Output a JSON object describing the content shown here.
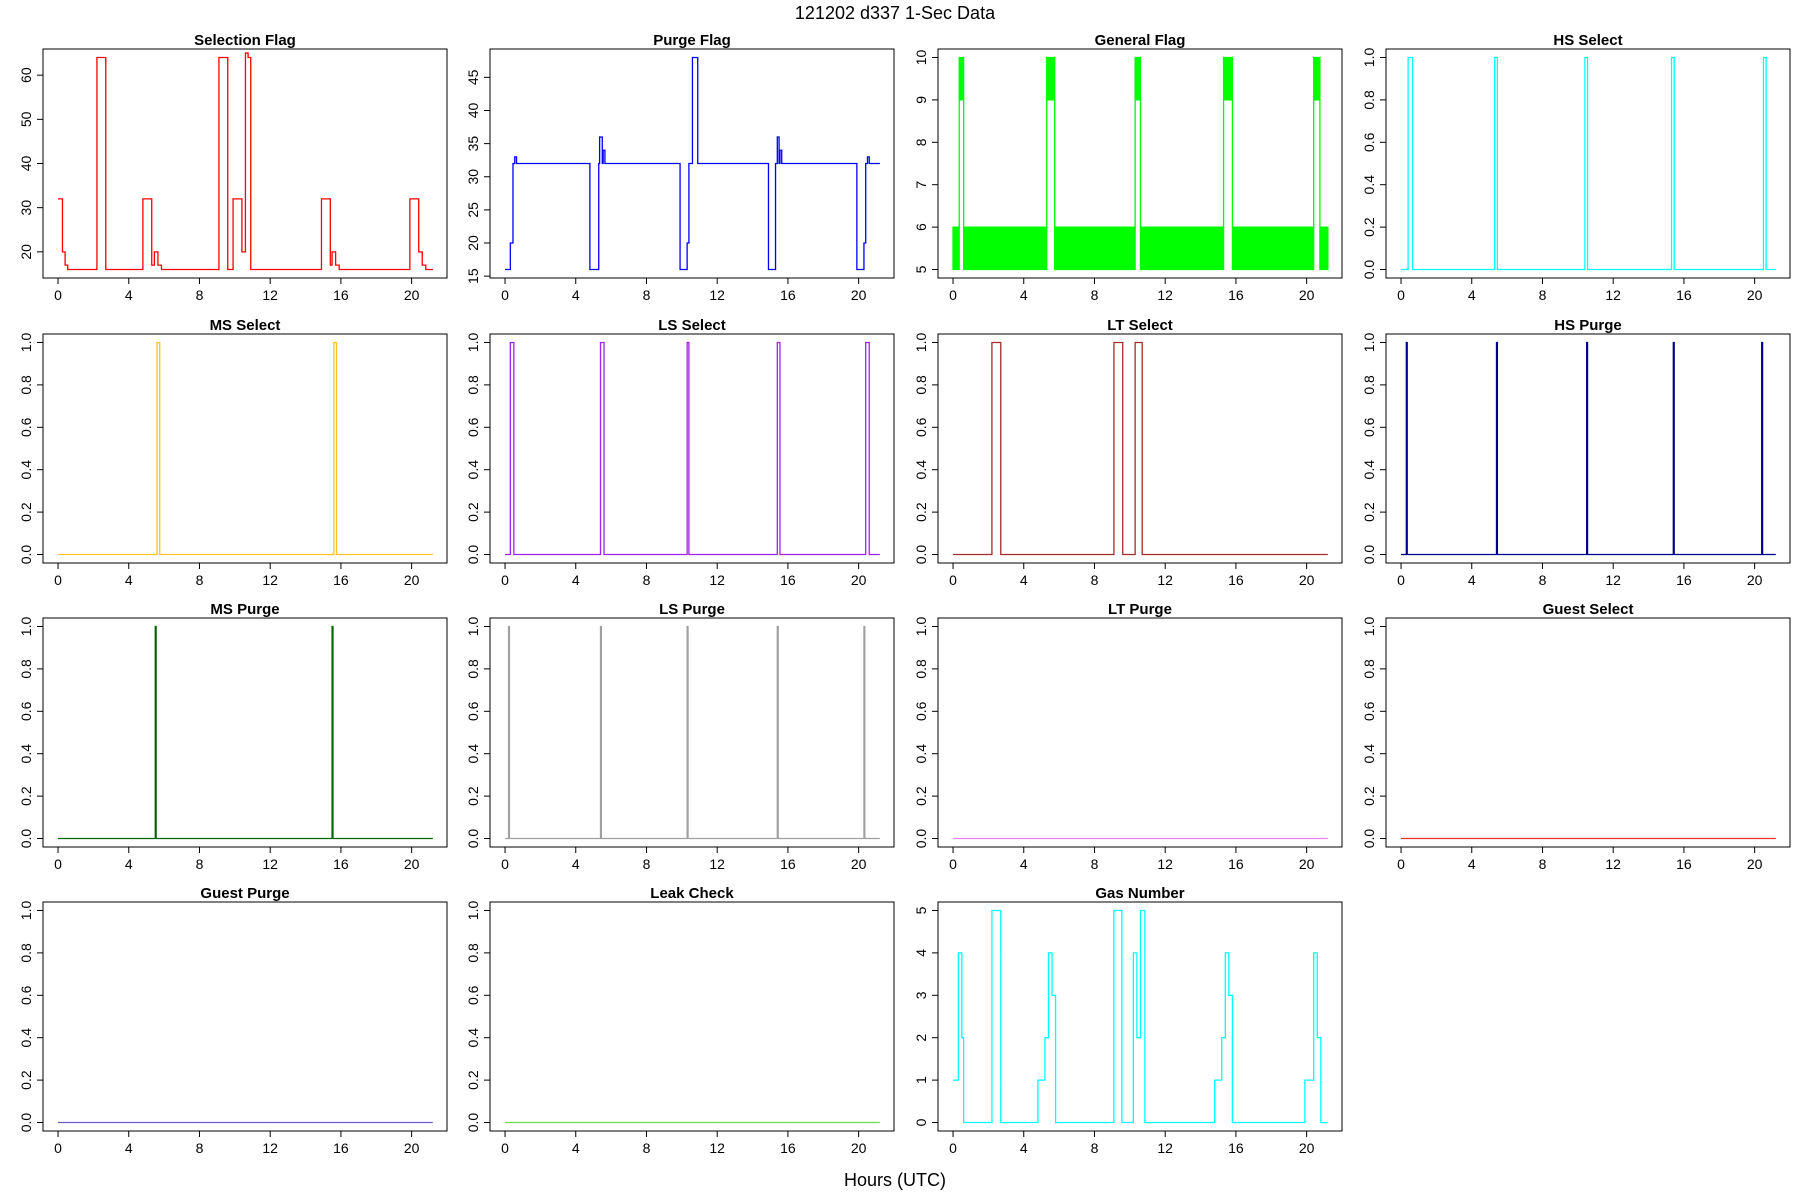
{
  "title": "121202   d337   1-Sec Data",
  "xlabel": "Hours (UTC)",
  "chart_data": [
    {
      "type": "line",
      "title": "Selection Flag",
      "color": "#ff0000",
      "x": [
        0,
        0.25,
        0.4,
        0.55,
        2.2,
        2.7,
        4.8,
        5.3,
        5.45,
        5.65,
        5.85,
        9.1,
        9.6,
        9.9,
        10.4,
        10.6,
        10.75,
        10.9,
        14.9,
        15.4,
        15.5,
        15.7,
        15.9,
        19.9,
        20.4,
        20.6,
        20.8,
        21.2
      ],
      "values": [
        32,
        20,
        17,
        16,
        64,
        16,
        32,
        17,
        20,
        17,
        16,
        64,
        16,
        32,
        20,
        65,
        64,
        16,
        32,
        17,
        20,
        17,
        16,
        32,
        20,
        17,
        16,
        16
      ],
      "xlim": [
        -0.85,
        22.0
      ],
      "ylim": [
        14.08,
        65.92
      ],
      "xticks": [
        0,
        4,
        8,
        12,
        16,
        20
      ],
      "yticks": [
        20,
        30,
        40,
        50,
        60
      ]
    },
    {
      "type": "line",
      "title": "Purge Flag",
      "color": "#0000ff",
      "x": [
        0,
        0.3,
        0.45,
        0.55,
        0.65,
        4.8,
        5.3,
        5.35,
        5.5,
        5.55,
        5.65,
        9.9,
        10.3,
        10.4,
        10.6,
        10.9,
        14.9,
        15.3,
        15.4,
        15.5,
        15.55,
        15.65,
        19.9,
        20.3,
        20.4,
        20.5,
        20.6,
        21.2
      ],
      "values": [
        16,
        20,
        32,
        33,
        32,
        16,
        32,
        36,
        32,
        34,
        32,
        16,
        20,
        32,
        48,
        32,
        16,
        32,
        36,
        32,
        34,
        32,
        16,
        20,
        32,
        33,
        32,
        32
      ],
      "xlim": [
        -0.85,
        22.0
      ],
      "ylim": [
        14.72,
        49.28
      ],
      "xticks": [
        0,
        4,
        8,
        12,
        16,
        20
      ],
      "yticks": [
        15,
        20,
        25,
        30,
        35,
        40,
        45
      ]
    },
    {
      "type": "band",
      "title": "General Flag",
      "color": "#00ff00",
      "x": [
        0,
        0.35,
        0.6,
        5.3,
        5.75,
        10.3,
        10.6,
        15.3,
        15.8,
        20.4,
        20.75,
        21.2
      ],
      "values": [
        6,
        10,
        6,
        10,
        6,
        10,
        6,
        10,
        6,
        10,
        6,
        6
      ],
      "low": [
        5,
        9,
        5,
        9,
        5,
        9,
        5,
        9,
        5,
        9,
        5,
        5
      ],
      "xlim": [
        -0.85,
        22.0
      ],
      "ylim": [
        4.8,
        10.2
      ],
      "xticks": [
        0,
        4,
        8,
        12,
        16,
        20
      ],
      "yticks": [
        5,
        6,
        7,
        8,
        9,
        10
      ]
    },
    {
      "type": "line",
      "title": "HS Select",
      "color": "#00ffff",
      "x": [
        0,
        0.4,
        0.65,
        5.3,
        5.45,
        10.4,
        10.55,
        15.3,
        15.45,
        20.5,
        20.65,
        21.2
      ],
      "values": [
        0,
        1,
        0,
        1,
        0,
        1,
        0,
        1,
        0,
        1,
        0,
        0
      ],
      "xlim": [
        -0.85,
        22.0
      ],
      "ylim": [
        -0.04,
        1.04
      ],
      "xticks": [
        0,
        4,
        8,
        12,
        16,
        20
      ],
      "yticks": [
        {
          "value": 0,
          "label": "0.0"
        },
        {
          "value": 0.2,
          "label": "0.2"
        },
        {
          "value": 0.4,
          "label": "0.4"
        },
        {
          "value": 0.6,
          "label": "0.6"
        },
        {
          "value": 0.8,
          "label": "0.8"
        },
        {
          "value": 1,
          "label": "1.0"
        }
      ]
    },
    {
      "type": "line",
      "title": "MS Select",
      "color": "#ffc125",
      "x": [
        0,
        5.6,
        5.75,
        15.6,
        15.75,
        21.2
      ],
      "values": [
        0,
        1,
        0,
        1,
        0,
        0
      ],
      "xlim": [
        -0.85,
        22.0
      ],
      "ylim": [
        -0.04,
        1.04
      ],
      "xticks": [
        0,
        4,
        8,
        12,
        16,
        20
      ],
      "yticks": [
        {
          "value": 0,
          "label": "0.0"
        },
        {
          "value": 0.2,
          "label": "0.2"
        },
        {
          "value": 0.4,
          "label": "0.4"
        },
        {
          "value": 0.6,
          "label": "0.6"
        },
        {
          "value": 0.8,
          "label": "0.8"
        },
        {
          "value": 1,
          "label": "1.0"
        }
      ]
    },
    {
      "type": "line",
      "title": "LS Select",
      "color": "#a020f0",
      "x": [
        0,
        0.3,
        0.5,
        5.4,
        5.6,
        10.3,
        10.4,
        15.4,
        15.55,
        20.4,
        20.6,
        21.2
      ],
      "values": [
        0,
        1,
        0,
        1,
        0,
        1,
        0,
        1,
        0,
        1,
        0,
        0
      ],
      "xlim": [
        -0.85,
        22.0
      ],
      "ylim": [
        -0.04,
        1.04
      ],
      "xticks": [
        0,
        4,
        8,
        12,
        16,
        20
      ],
      "yticks": [
        {
          "value": 0,
          "label": "0.0"
        },
        {
          "value": 0.2,
          "label": "0.2"
        },
        {
          "value": 0.4,
          "label": "0.4"
        },
        {
          "value": 0.6,
          "label": "0.6"
        },
        {
          "value": 0.8,
          "label": "0.8"
        },
        {
          "value": 1,
          "label": "1.0"
        }
      ]
    },
    {
      "type": "line",
      "title": "LT Select",
      "color": "#a52a2a",
      "x": [
        0,
        2.2,
        2.7,
        9.1,
        9.6,
        10.3,
        10.7,
        21.2
      ],
      "values": [
        0,
        1,
        0,
        1,
        0,
        1,
        0,
        0
      ],
      "xlim": [
        -0.85,
        22.0
      ],
      "ylim": [
        -0.04,
        1.04
      ],
      "xticks": [
        0,
        4,
        8,
        12,
        16,
        20
      ],
      "yticks": [
        {
          "value": 0,
          "label": "0.0"
        },
        {
          "value": 0.2,
          "label": "0.2"
        },
        {
          "value": 0.4,
          "label": "0.4"
        },
        {
          "value": 0.6,
          "label": "0.6"
        },
        {
          "value": 0.8,
          "label": "0.8"
        },
        {
          "value": 1,
          "label": "1.0"
        }
      ]
    },
    {
      "type": "line",
      "title": "HS Purge",
      "color": "#00008b",
      "x": [
        0,
        0.3,
        0.35,
        5.4,
        5.45,
        10.5,
        10.55,
        15.4,
        15.45,
        20.4,
        20.45,
        21.2
      ],
      "values": [
        0,
        1,
        0,
        1,
        0,
        1,
        0,
        1,
        0,
        1,
        0,
        0
      ],
      "xlim": [
        -0.85,
        22.0
      ],
      "ylim": [
        -0.04,
        1.04
      ],
      "xticks": [
        0,
        4,
        8,
        12,
        16,
        20
      ],
      "yticks": [
        {
          "value": 0,
          "label": "0.0"
        },
        {
          "value": 0.2,
          "label": "0.2"
        },
        {
          "value": 0.4,
          "label": "0.4"
        },
        {
          "value": 0.6,
          "label": "0.6"
        },
        {
          "value": 0.8,
          "label": "0.8"
        },
        {
          "value": 1,
          "label": "1.0"
        }
      ]
    },
    {
      "type": "line",
      "title": "MS Purge",
      "color": "#006400",
      "x": [
        0,
        5.5,
        5.55,
        15.5,
        15.55,
        21.2
      ],
      "values": [
        0,
        1,
        0,
        1,
        0,
        0
      ],
      "xlim": [
        -0.85,
        22.0
      ],
      "ylim": [
        -0.04,
        1.04
      ],
      "xticks": [
        0,
        4,
        8,
        12,
        16,
        20
      ],
      "yticks": [
        {
          "value": 0,
          "label": "0.0"
        },
        {
          "value": 0.2,
          "label": "0.2"
        },
        {
          "value": 0.4,
          "label": "0.4"
        },
        {
          "value": 0.6,
          "label": "0.6"
        },
        {
          "value": 0.8,
          "label": "0.8"
        },
        {
          "value": 1,
          "label": "1.0"
        }
      ]
    },
    {
      "type": "line",
      "title": "LS Purge",
      "color": "#a0a0a0",
      "x": [
        0,
        0.2,
        0.25,
        5.4,
        5.45,
        10.3,
        10.35,
        15.4,
        15.45,
        20.3,
        20.35,
        21.2
      ],
      "values": [
        0,
        1,
        0,
        1,
        0,
        1,
        0,
        1,
        0,
        1,
        0,
        0
      ],
      "xlim": [
        -0.85,
        22.0
      ],
      "ylim": [
        -0.04,
        1.04
      ],
      "xticks": [
        0,
        4,
        8,
        12,
        16,
        20
      ],
      "yticks": [
        {
          "value": 0,
          "label": "0.0"
        },
        {
          "value": 0.2,
          "label": "0.2"
        },
        {
          "value": 0.4,
          "label": "0.4"
        },
        {
          "value": 0.6,
          "label": "0.6"
        },
        {
          "value": 0.8,
          "label": "0.8"
        },
        {
          "value": 1,
          "label": "1.0"
        }
      ]
    },
    {
      "type": "line",
      "title": "LT Purge",
      "color": "#ee82ee",
      "x": [
        0,
        21.2
      ],
      "values": [
        0,
        0
      ],
      "xlim": [
        -0.85,
        22.0
      ],
      "ylim": [
        -0.04,
        1.04
      ],
      "xticks": [
        0,
        4,
        8,
        12,
        16,
        20
      ],
      "yticks": [
        {
          "value": 0,
          "label": "0.0"
        },
        {
          "value": 0.2,
          "label": "0.2"
        },
        {
          "value": 0.4,
          "label": "0.4"
        },
        {
          "value": 0.6,
          "label": "0.6"
        },
        {
          "value": 0.8,
          "label": "0.8"
        },
        {
          "value": 1,
          "label": "1.0"
        }
      ]
    },
    {
      "type": "line",
      "title": "Guest Select",
      "color": "#ee3020",
      "x": [
        0,
        21.2
      ],
      "values": [
        0,
        0
      ],
      "xlim": [
        -0.85,
        22.0
      ],
      "ylim": [
        -0.04,
        1.04
      ],
      "xticks": [
        0,
        4,
        8,
        12,
        16,
        20
      ],
      "yticks": [
        {
          "value": 0,
          "label": "0.0"
        },
        {
          "value": 0.2,
          "label": "0.2"
        },
        {
          "value": 0.4,
          "label": "0.4"
        },
        {
          "value": 0.6,
          "label": "0.6"
        },
        {
          "value": 0.8,
          "label": "0.8"
        },
        {
          "value": 1,
          "label": "1.0"
        }
      ]
    },
    {
      "type": "line",
      "title": "Guest Purge",
      "color": "#6a5acd",
      "x": [
        0,
        21.2
      ],
      "values": [
        0,
        0
      ],
      "xlim": [
        -0.85,
        22.0
      ],
      "ylim": [
        -0.04,
        1.04
      ],
      "xticks": [
        0,
        4,
        8,
        12,
        16,
        20
      ],
      "yticks": [
        {
          "value": 0,
          "label": "0.0"
        },
        {
          "value": 0.2,
          "label": "0.2"
        },
        {
          "value": 0.4,
          "label": "0.4"
        },
        {
          "value": 0.6,
          "label": "0.6"
        },
        {
          "value": 0.8,
          "label": "0.8"
        },
        {
          "value": 1,
          "label": "1.0"
        }
      ]
    },
    {
      "type": "line",
      "title": "Leak Check",
      "color": "#66dd44",
      "x": [
        0,
        21.2
      ],
      "values": [
        0,
        0
      ],
      "xlim": [
        -0.85,
        22.0
      ],
      "ylim": [
        -0.04,
        1.04
      ],
      "xticks": [
        0,
        4,
        8,
        12,
        16,
        20
      ],
      "yticks": [
        {
          "value": 0,
          "label": "0.0"
        },
        {
          "value": 0.2,
          "label": "0.2"
        },
        {
          "value": 0.4,
          "label": "0.4"
        },
        {
          "value": 0.6,
          "label": "0.6"
        },
        {
          "value": 0.8,
          "label": "0.8"
        },
        {
          "value": 1,
          "label": "1.0"
        }
      ]
    },
    {
      "type": "line",
      "title": "Gas Number",
      "color": "#00ffff",
      "x": [
        0,
        0.3,
        0.5,
        0.6,
        2.2,
        2.7,
        4.8,
        5.2,
        5.4,
        5.6,
        5.8,
        9.1,
        9.55,
        10.2,
        10.4,
        10.6,
        10.85,
        14.8,
        15.2,
        15.4,
        15.6,
        15.8,
        19.9,
        20.4,
        20.6,
        20.8,
        21.2
      ],
      "values": [
        1,
        4,
        2,
        0,
        5,
        0,
        1,
        2,
        4,
        3,
        0,
        5,
        0,
        4,
        2,
        5,
        0,
        1,
        2,
        4,
        3,
        0,
        1,
        4,
        2,
        0,
        0
      ],
      "xlim": [
        -0.85,
        22.0
      ],
      "ylim": [
        -0.2,
        5.2
      ],
      "xticks": [
        0,
        4,
        8,
        12,
        16,
        20
      ],
      "yticks": [
        0,
        1,
        2,
        3,
        4,
        5
      ]
    }
  ]
}
